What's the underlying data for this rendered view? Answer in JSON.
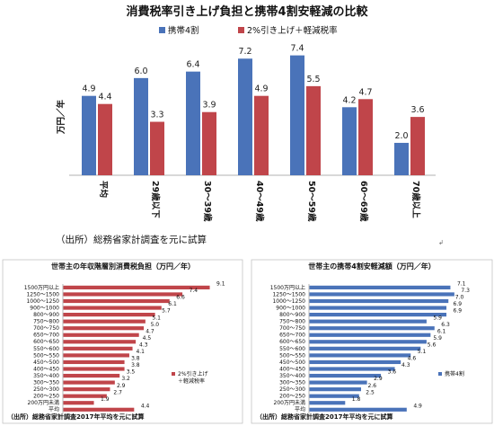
{
  "main_title": "消費税率引き上げ負担と携帯4割安軽減の比較",
  "main_source": "（出所）総務省家計調査を元に試算",
  "colors": {
    "blue": "#4a73b9",
    "red": "#c0454a"
  },
  "chart_data": [
    {
      "type": "bar",
      "title": "消費税率引き上げ負担と携帯4割安軽減の比較",
      "ylabel": "万円／年",
      "categories": [
        "平均",
        "29歳以下",
        "30～39歳",
        "40～49歳",
        "50～59歳",
        "60～69歳",
        "70歳以上"
      ],
      "ylim": [
        0,
        8.6
      ],
      "legend_position": "top",
      "series": [
        {
          "name": "携帯4割",
          "color": "#4a73b9",
          "values": [
            4.9,
            6.0,
            6.4,
            7.2,
            7.4,
            4.2,
            2.0
          ],
          "labels": [
            "4.9",
            "6.0",
            "6.4",
            "7.2",
            "7.4",
            "4.2",
            "2.0"
          ]
        },
        {
          "name": "2%引き上げ＋軽減税率",
          "color": "#c0454a",
          "values": [
            4.4,
            3.3,
            3.9,
            4.9,
            5.5,
            4.7,
            3.6
          ],
          "labels": [
            "4.4",
            "3.3",
            "3.9",
            "4.9",
            "5.5",
            "4.7",
            "3.6"
          ]
        }
      ]
    },
    {
      "type": "bar",
      "orientation": "horizontal",
      "title": "世帯主の年収階層別消費税負担（万円／年）",
      "categories": [
        "1500万円以上",
        "1250～1500",
        "1000～1250",
        "900～1000",
        "800～900",
        "750～800",
        "700～750",
        "650～700",
        "600～650",
        "550～600",
        "500～550",
        "450～500",
        "400～450",
        "350～400",
        "300～350",
        "250～300",
        "200～250",
        "200万円未満",
        "平均"
      ],
      "xlim": [
        0,
        9.6
      ],
      "legend_position": "bottom-right",
      "series": [
        {
          "name": "2%引き上げ＋軽減税率",
          "color": "#c0454a",
          "values": [
            9.1,
            7.4,
            6.6,
            6.1,
            5.7,
            5.1,
            5.0,
            4.7,
            4.5,
            4.3,
            4.1,
            3.8,
            3.8,
            3.5,
            3.2,
            2.9,
            2.7,
            1.9,
            4.4
          ],
          "labels": [
            "9.1",
            "7.4",
            "6.6",
            "6.1",
            "5.7",
            "5.1",
            "5.0",
            "4.7",
            "4.5",
            "4.3",
            "4.1",
            "3.8",
            "3.8",
            "3.5",
            "3.2",
            "2.9",
            "2.7",
            "1.9",
            "4.4"
          ]
        }
      ],
      "source": "（出所）総務省家計調査2017年平均を元に試算"
    },
    {
      "type": "bar",
      "orientation": "horizontal",
      "title": "世帯主の携帯4割安軽減額（万円／年）",
      "categories": [
        "1500万円以上",
        "1250～1500",
        "1000～1250",
        "900～1000",
        "800～900",
        "750～800",
        "700～750",
        "650～700",
        "600～650",
        "550～600",
        "500～550",
        "450～500",
        "400～450",
        "350～400",
        "300～350",
        "250～300",
        "200～250",
        "200万円未満",
        "平均"
      ],
      "xlim": [
        0,
        7.6
      ],
      "legend_position": "bottom-right",
      "series": [
        {
          "name": "携帯4割",
          "color": "#4a73b9",
          "values": [
            7.1,
            7.3,
            7.0,
            6.9,
            6.9,
            5.9,
            6.3,
            6.1,
            5.9,
            5.6,
            5.1,
            4.6,
            4.3,
            3.6,
            2.9,
            2.6,
            2.5,
            1.8,
            4.9
          ],
          "labels": [
            "7.1",
            "7.3",
            "7.0",
            "6.9",
            "6.9",
            "5.9",
            "6.3",
            "6.1",
            "5.9",
            "5.6",
            "5.1",
            "4.6",
            "4.3",
            "3.6",
            "2.9",
            "2.6",
            "2.5",
            "1.8",
            "4.9"
          ]
        }
      ],
      "source": "（出所）総務省家計調査2017年平均を元に試算"
    }
  ]
}
